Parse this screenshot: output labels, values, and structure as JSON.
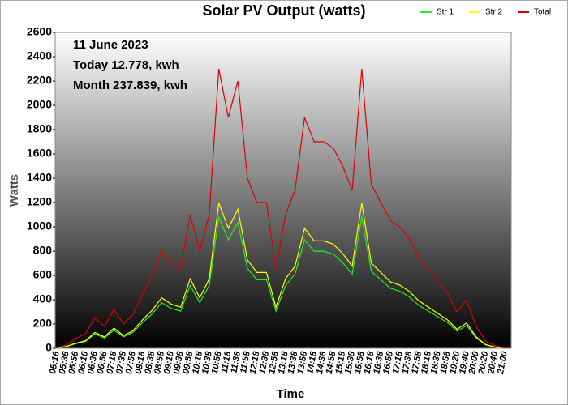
{
  "chart_data": {
    "type": "line",
    "title": "Solar PV Output (watts)",
    "annotations": [
      "11 June 2023",
      "Today 12.778, kwh",
      "Month 237.839, kwh"
    ],
    "x_label": "Time",
    "y_label": "Watts",
    "categories": [
      "05:16",
      "05:36",
      "05:56",
      "06:16",
      "06:36",
      "06:56",
      "07:18",
      "07:38",
      "07:58",
      "08:18",
      "08:38",
      "08:58",
      "09:18",
      "09:38",
      "09:58",
      "10:18",
      "10:38",
      "10:58",
      "11:18",
      "11:38",
      "11:58",
      "12:18",
      "12:38",
      "12:58",
      "13:18",
      "13:38",
      "13:58",
      "14:18",
      "14:38",
      "14:58",
      "15:18",
      "15:38",
      "15:58",
      "16:18",
      "16:38",
      "16:58",
      "17:18",
      "17:38",
      "17:58",
      "18:18",
      "18:38",
      "18:58",
      "19:20",
      "19:40",
      "20:00",
      "20:20",
      "20:40",
      "21:00"
    ],
    "series": [
      {
        "name": "Str 1",
        "color": "#22ee22",
        "values": [
          0,
          14,
          38,
          56,
          118,
          85,
          150,
          94,
          132,
          212,
          282,
          376,
          329,
          306,
          517,
          376,
          517,
          1081,
          893,
          1034,
          658,
          564,
          564,
          306,
          517,
          611,
          893,
          799,
          799,
          776,
          705,
          611,
          1081,
          635,
          564,
          494,
          470,
          423,
          353,
          306,
          259,
          212,
          141,
          188,
          85,
          28,
          9,
          0
        ]
      },
      {
        "name": "Str 2",
        "color": "#ffff00",
        "values": [
          0,
          16,
          42,
          62,
          130,
          94,
          166,
          104,
          146,
          234,
          312,
          416,
          364,
          338,
          572,
          416,
          572,
          1196,
          988,
          1144,
          728,
          624,
          624,
          338,
          572,
          676,
          988,
          884,
          884,
          858,
          780,
          676,
          1196,
          702,
          624,
          546,
          520,
          468,
          390,
          338,
          286,
          234,
          156,
          208,
          94,
          31,
          10,
          0
        ]
      },
      {
        "name": "Total",
        "color": "#dd0000",
        "values": [
          0,
          30,
          80,
          120,
          250,
          180,
          320,
          200,
          280,
          450,
          600,
          800,
          700,
          650,
          1100,
          800,
          1100,
          2300,
          1900,
          2200,
          1400,
          1200,
          1200,
          650,
          1100,
          1300,
          1900,
          1700,
          1700,
          1650,
          1500,
          1300,
          2300,
          1350,
          1200,
          1050,
          1000,
          900,
          750,
          650,
          550,
          450,
          300,
          400,
          180,
          60,
          20,
          0
        ]
      }
    ],
    "ylim": [
      0,
      2600
    ],
    "yticks": [
      0,
      200,
      400,
      600,
      800,
      1000,
      1200,
      1400,
      1600,
      1800,
      2000,
      2200,
      2400,
      2600
    ],
    "grid": false,
    "legend": "top-right"
  }
}
